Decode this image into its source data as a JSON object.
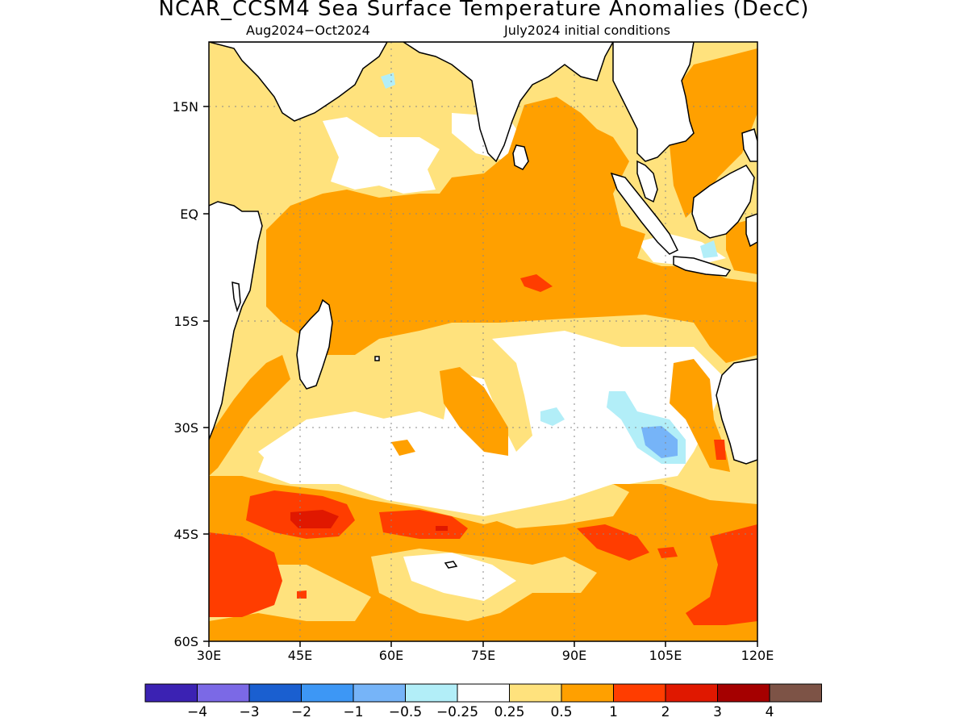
{
  "title": "NCAR_CCSM4 Sea Surface Temperature Anomalies (DecC)",
  "subtitle_left": "Aug2024−Oct2024",
  "subtitle_right": "July2024 initial conditions",
  "colors": {
    "lt_-4": "#3b22b3",
    "-4_-3": "#7b69e6",
    "-3_-2": "#1a5fd0",
    "-2_-1": "#3d97f5",
    "-1_-0.5": "#76b4f8",
    "-0.5_-0.25": "#b2eef8",
    "-0.25_0.25": "#ffffff",
    "0.25_0.5": "#ffe27d",
    "0.5_1": "#ffa000",
    "1_2": "#ff3d00",
    "2_3": "#e01800",
    "3_4": "#a50000",
    "gt_4": "#7d5346",
    "land_outline": "#000000"
  },
  "y_ticks": [
    "15N",
    "EQ",
    "15S",
    "30S",
    "45S",
    "60S"
  ],
  "x_ticks": [
    "30E",
    "45E",
    "60E",
    "75E",
    "90E",
    "105E",
    "120E"
  ],
  "colorbar": {
    "labels": [
      "−4",
      "−3",
      "−2",
      "−1",
      "−0.5",
      "−0.25",
      "0.25",
      "0.5",
      "1",
      "2",
      "3",
      "4"
    ],
    "bins": [
      "lt_-4",
      "-4_-3",
      "-3_-2",
      "-2_-1",
      "-1_-0.5",
      "-0.5_-0.25",
      "-0.25_0.25",
      "0.25_0.5",
      "0.5_1",
      "1_2",
      "2_3",
      "3_4",
      "gt_4"
    ]
  }
}
